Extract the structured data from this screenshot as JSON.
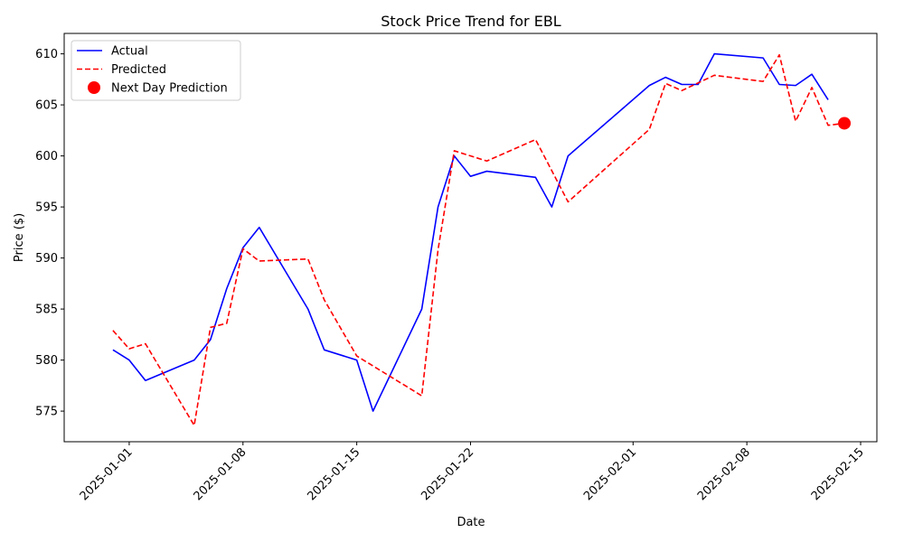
{
  "chart_data": {
    "type": "line",
    "title": "Stock Price Trend for EBL",
    "xlabel": "Date",
    "ylabel": "Price ($)",
    "x_axis_type": "date",
    "xlim": [
      "2024-12-28",
      "2025-02-16"
    ],
    "ylim": [
      572,
      612
    ],
    "yticks": [
      575,
      580,
      585,
      590,
      595,
      600,
      605,
      610
    ],
    "xticks": [
      "2025-01-01",
      "2025-01-08",
      "2025-01-15",
      "2025-01-22",
      "2025-02-01",
      "2025-02-08",
      "2025-02-15"
    ],
    "grid": false,
    "legend_position": "upper-left",
    "series": [
      {
        "name": "Actual",
        "style": "solid",
        "color": "#0000ff",
        "points": [
          {
            "x": "2024-12-31",
            "y": 581.0
          },
          {
            "x": "2025-01-01",
            "y": 580.0
          },
          {
            "x": "2025-01-02",
            "y": 578.0
          },
          {
            "x": "2025-01-05",
            "y": 580.0
          },
          {
            "x": "2025-01-06",
            "y": 582.0
          },
          {
            "x": "2025-01-07",
            "y": 587.0
          },
          {
            "x": "2025-01-08",
            "y": 591.0
          },
          {
            "x": "2025-01-09",
            "y": 593.0
          },
          {
            "x": "2025-01-12",
            "y": 585.0
          },
          {
            "x": "2025-01-13",
            "y": 581.0
          },
          {
            "x": "2025-01-15",
            "y": 580.0
          },
          {
            "x": "2025-01-16",
            "y": 575.0
          },
          {
            "x": "2025-01-19",
            "y": 585.0
          },
          {
            "x": "2025-01-20",
            "y": 595.0
          },
          {
            "x": "2025-01-21",
            "y": 600.0
          },
          {
            "x": "2025-01-22",
            "y": 598.0
          },
          {
            "x": "2025-01-23",
            "y": 598.5
          },
          {
            "x": "2025-01-26",
            "y": 597.9
          },
          {
            "x": "2025-01-27",
            "y": 595.0
          },
          {
            "x": "2025-01-28",
            "y": 600.0
          },
          {
            "x": "2025-02-02",
            "y": 606.9
          },
          {
            "x": "2025-02-03",
            "y": 607.7
          },
          {
            "x": "2025-02-04",
            "y": 607.0
          },
          {
            "x": "2025-02-05",
            "y": 607.0
          },
          {
            "x": "2025-02-06",
            "y": 610.0
          },
          {
            "x": "2025-02-09",
            "y": 609.6
          },
          {
            "x": "2025-02-10",
            "y": 607.0
          },
          {
            "x": "2025-02-11",
            "y": 606.9
          },
          {
            "x": "2025-02-12",
            "y": 608.0
          },
          {
            "x": "2025-02-13",
            "y": 605.5
          }
        ]
      },
      {
        "name": "Predicted",
        "style": "dashed",
        "color": "#ff0000",
        "points": [
          {
            "x": "2024-12-31",
            "y": 582.9
          },
          {
            "x": "2025-01-01",
            "y": 581.1
          },
          {
            "x": "2025-01-02",
            "y": 581.6
          },
          {
            "x": "2025-01-05",
            "y": 573.6
          },
          {
            "x": "2025-01-06",
            "y": 583.2
          },
          {
            "x": "2025-01-07",
            "y": 583.6
          },
          {
            "x": "2025-01-08",
            "y": 590.9
          },
          {
            "x": "2025-01-09",
            "y": 589.7
          },
          {
            "x": "2025-01-12",
            "y": 589.9
          },
          {
            "x": "2025-01-13",
            "y": 585.9
          },
          {
            "x": "2025-01-15",
            "y": 580.4
          },
          {
            "x": "2025-01-19",
            "y": 576.5
          },
          {
            "x": "2025-01-20",
            "y": 590.8
          },
          {
            "x": "2025-01-21",
            "y": 600.5
          },
          {
            "x": "2025-01-23",
            "y": 599.5
          },
          {
            "x": "2025-01-26",
            "y": 601.6
          },
          {
            "x": "2025-01-28",
            "y": 595.5
          },
          {
            "x": "2025-02-02",
            "y": 602.6
          },
          {
            "x": "2025-02-03",
            "y": 607.1
          },
          {
            "x": "2025-02-04",
            "y": 606.4
          },
          {
            "x": "2025-02-06",
            "y": 607.9
          },
          {
            "x": "2025-02-09",
            "y": 607.3
          },
          {
            "x": "2025-02-10",
            "y": 609.9
          },
          {
            "x": "2025-02-11",
            "y": 603.4
          },
          {
            "x": "2025-02-12",
            "y": 606.7
          },
          {
            "x": "2025-02-13",
            "y": 603.0
          },
          {
            "x": "2025-02-14",
            "y": 603.2
          }
        ]
      },
      {
        "name": "Next Day Prediction",
        "style": "marker",
        "color": "#ff0000",
        "points": [
          {
            "x": "2025-02-14",
            "y": 603.2
          }
        ]
      }
    ]
  }
}
